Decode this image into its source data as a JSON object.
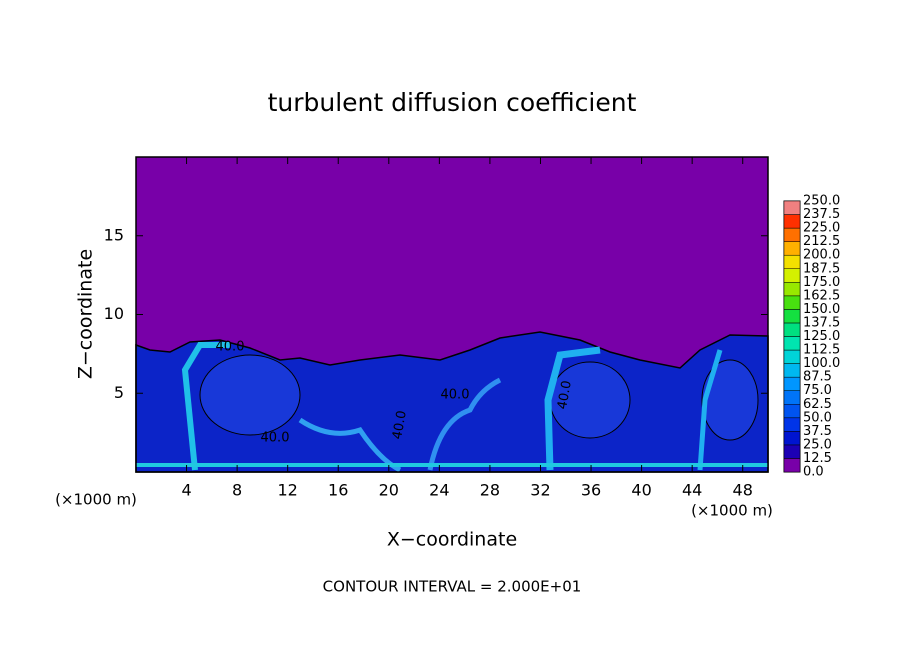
{
  "chart_data": {
    "type": "contour",
    "title": "turbulent diffusion coefficient",
    "x_label": "X−coordinate",
    "y_label": "Z−coordinate",
    "x_unit_label": "(×1000 m)",
    "footnote": "CONTOUR INTERVAL = 2.000E+01",
    "xlim": [
      0,
      50
    ],
    "ylim": [
      0,
      20
    ],
    "xticks": [
      4,
      8,
      12,
      16,
      20,
      24,
      28,
      32,
      36,
      40,
      44,
      48
    ],
    "yticks": [
      5,
      10,
      15
    ],
    "contour_labels": [
      "40.0",
      "40.0",
      "40.0",
      "40.0",
      "40.0"
    ],
    "colorbar": {
      "ticks": [
        {
          "value": 0,
          "label": "0.0"
        },
        {
          "value": 12.5,
          "label": "12.5"
        },
        {
          "value": 25,
          "label": "25.0"
        },
        {
          "value": 37.5,
          "label": "37.5"
        },
        {
          "value": 50,
          "label": "50.0"
        },
        {
          "value": 62.5,
          "label": "62.5"
        },
        {
          "value": 75,
          "label": "75.0"
        },
        {
          "value": 87.5,
          "label": "87.5"
        },
        {
          "value": 100,
          "label": "100.0"
        },
        {
          "value": 112.5,
          "label": "112.5"
        },
        {
          "value": 125,
          "label": "125.0"
        },
        {
          "value": 137.5,
          "label": "137.5"
        },
        {
          "value": 150,
          "label": "150.0"
        },
        {
          "value": 162.5,
          "label": "162.5"
        },
        {
          "value": 175,
          "label": "175.0"
        },
        {
          "value": 187.5,
          "label": "187.5"
        },
        {
          "value": 200,
          "label": "200.0"
        },
        {
          "value": 212.5,
          "label": "212.5"
        },
        {
          "value": 225,
          "label": "225.0"
        },
        {
          "value": 237.5,
          "label": "237.5"
        },
        {
          "value": 250,
          "label": "250.0"
        }
      ],
      "colors": [
        "#7800a8",
        "#1c00b4",
        "#0014d0",
        "#0034e8",
        "#0054f0",
        "#0074f8",
        "#0096ff",
        "#00b8f0",
        "#00d4d8",
        "#00e4b0",
        "#00e080",
        "#14e040",
        "#48e010",
        "#98e800",
        "#d4f000",
        "#f4e000",
        "#ffb000",
        "#ff7000",
        "#ff3000",
        "#f08080"
      ]
    }
  }
}
